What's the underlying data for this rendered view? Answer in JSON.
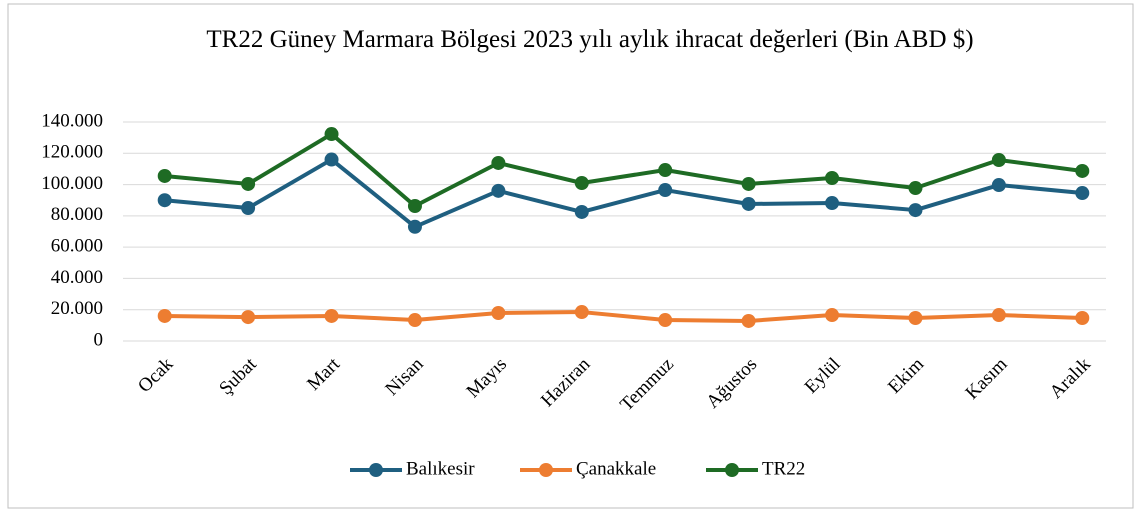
{
  "chart_data": {
    "type": "line",
    "title": "TR22 Güney Marmara Bölgesi 2023 yılı aylık ihracat değerleri (Bin ABD $)",
    "categories": [
      "Ocak",
      "Şubat",
      "Mart",
      "Nisan",
      "Mayıs",
      "Haziran",
      "Temmuz",
      "Ağustos",
      "Eylül",
      "Ekim",
      "Kasım",
      "Aralık"
    ],
    "series": [
      {
        "name": "Balıkesir",
        "color": "#1f5f80",
        "values": [
          90000,
          85000,
          116000,
          73000,
          96000,
          82500,
          96500,
          87600,
          88200,
          83700,
          99700,
          94600
        ]
      },
      {
        "name": "Çanakkale",
        "color": "#ed7d31",
        "values": [
          16000,
          15300,
          16000,
          13400,
          17900,
          18500,
          13400,
          12800,
          16600,
          14700,
          16600,
          14700
        ]
      },
      {
        "name": "TR22",
        "color": "#1e6b24",
        "values": [
          105500,
          100400,
          132300,
          86300,
          113800,
          101000,
          109300,
          100400,
          104200,
          97800,
          115700,
          108700
        ]
      }
    ],
    "ylim": [
      0,
      140000
    ],
    "yticks": [
      0,
      {
        "value": 20000,
        "label": "20.000"
      },
      {
        "value": 40000,
        "label": "40.000"
      },
      {
        "value": 60000,
        "label": "60.000"
      },
      {
        "value": 80000,
        "label": "80.000"
      },
      {
        "value": 100000,
        "label": "100.000"
      },
      {
        "value": 120000,
        "label": "120.000"
      },
      {
        "value": 140000,
        "label": "140.000"
      }
    ],
    "grid": true,
    "legend": "bottom"
  }
}
